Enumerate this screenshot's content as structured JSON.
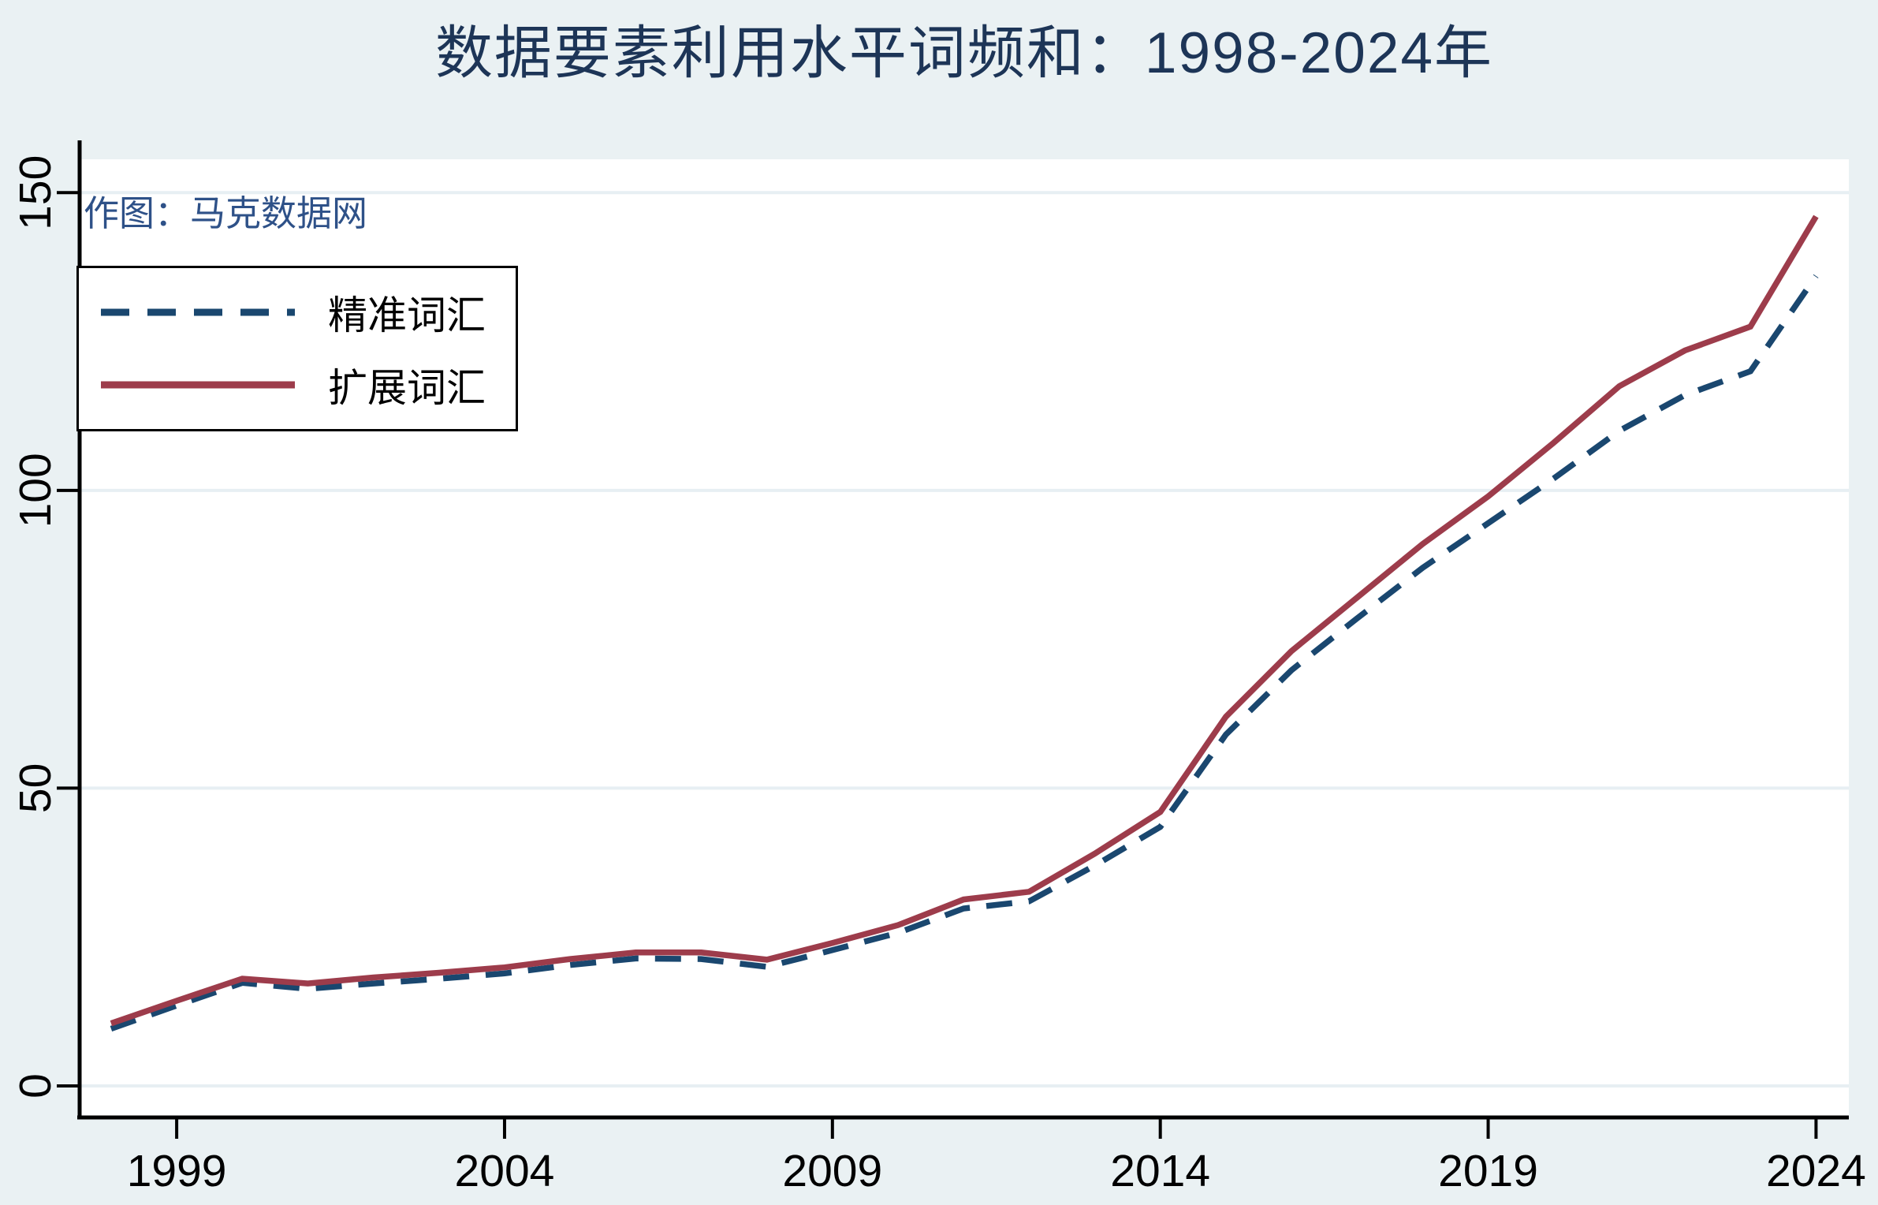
{
  "page": {
    "title": "数据要素利用水平词频和：1998-2024年",
    "annotation": "作图：马克数据网",
    "background_color": "#eaf1f3",
    "title_color": "#1d3557",
    "annotation_color": "#2e5188"
  },
  "legend": {
    "position": "top-left",
    "items": [
      {
        "label": "精准词汇",
        "line_style": "dashed",
        "color": "#1a476f"
      },
      {
        "label": "扩展词汇",
        "line_style": "solid",
        "color": "#9d3c4b"
      }
    ]
  },
  "chart_data": {
    "type": "line",
    "title": "数据要素利用水平词频和：1998-2024年",
    "xlabel": "",
    "ylabel": "",
    "x": [
      1998,
      1999,
      2000,
      2001,
      2002,
      2003,
      2004,
      2005,
      2006,
      2007,
      2008,
      2009,
      2010,
      2011,
      2012,
      2013,
      2014,
      2015,
      2016,
      2017,
      2018,
      2019,
      2020,
      2021,
      2022,
      2023,
      2024
    ],
    "series": [
      {
        "name": "精准词汇",
        "color": "#1a476f",
        "line_style": "dashed",
        "values": [
          9.6,
          13.5,
          17.3,
          16.3,
          17.2,
          18.0,
          18.9,
          20.3,
          21.4,
          21.3,
          20.0,
          22.8,
          25.7,
          29.8,
          31.0,
          37.0,
          43.5,
          59.0,
          69.8,
          78.5,
          87.0,
          94.5,
          102.0,
          110.0,
          116.0,
          120.0,
          136.0
        ]
      },
      {
        "name": "扩展词汇",
        "color": "#9d3c4b",
        "line_style": "solid",
        "values": [
          10.5,
          14.3,
          18.0,
          17.2,
          18.2,
          19.0,
          19.9,
          21.3,
          22.4,
          22.4,
          21.2,
          24.0,
          27.0,
          31.3,
          32.6,
          39.0,
          46.0,
          62.0,
          73.0,
          82.0,
          91.0,
          99.0,
          108.0,
          117.5,
          123.5,
          127.5,
          146.0
        ]
      }
    ],
    "x_ticks": [
      1999,
      2004,
      2009,
      2014,
      2019,
      2024
    ],
    "y_ticks": [
      0,
      50,
      100,
      150
    ],
    "xlim": [
      1997.52,
      2024.5
    ],
    "ylim": [
      -5.3,
      155.6
    ],
    "grid": "horizontal",
    "gridline_color": "#e7eff3",
    "axis_color": "#000000",
    "plot_background": "#ffffff",
    "legend_position": "top-left"
  }
}
